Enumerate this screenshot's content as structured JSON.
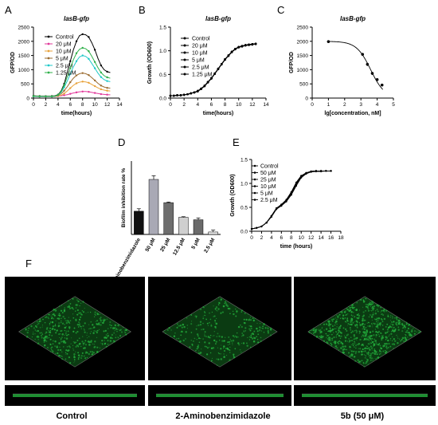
{
  "figure": {
    "colors": {
      "black": "#000000",
      "green": "#22a83a",
      "dark_green": "#0b3b12"
    }
  },
  "chart_data": [
    {
      "panel": "A",
      "type": "line",
      "title": "lasB-gfp",
      "xlabel": "time(hours)",
      "ylabel": "GFP/OD",
      "xlim": [
        0,
        14
      ],
      "ylim": [
        0,
        2500
      ],
      "xticks": [
        "0",
        "2",
        "4",
        "6",
        "8",
        "10",
        "12",
        "14"
      ],
      "yticks": [
        "0",
        "500",
        "1000",
        "1500",
        "2000",
        "2500"
      ],
      "x": [
        0,
        0.5,
        1,
        1.5,
        2,
        2.5,
        3,
        3.5,
        4,
        4.5,
        5,
        5.5,
        6,
        6.5,
        7,
        7.5,
        8,
        8.5,
        9,
        9.5,
        10,
        10.5,
        11,
        11.5,
        12,
        12.5
      ],
      "series": [
        {
          "name": "Control",
          "color": "#000000",
          "values": [
            80,
            75,
            70,
            70,
            68,
            68,
            70,
            80,
            120,
            250,
            500,
            900,
            1300,
            1700,
            2000,
            2200,
            2250,
            2230,
            2150,
            1950,
            1700,
            1400,
            1150,
            1000,
            930,
            900
          ]
        },
        {
          "name": "20 μM",
          "color": "#e0389a",
          "values": [
            60,
            58,
            55,
            55,
            55,
            55,
            55,
            60,
            70,
            80,
            100,
            120,
            150,
            180,
            200,
            220,
            230,
            230,
            220,
            200,
            180,
            160,
            140,
            130,
            120,
            115
          ]
        },
        {
          "name": "10 μM",
          "color": "#e8a23a",
          "values": [
            60,
            58,
            55,
            55,
            55,
            55,
            55,
            60,
            75,
            100,
            160,
            250,
            350,
            450,
            520,
            560,
            580,
            570,
            540,
            480,
            420,
            360,
            310,
            280,
            260,
            250
          ]
        },
        {
          "name": "5 μM",
          "color": "#9a6b2f",
          "values": [
            60,
            58,
            55,
            55,
            55,
            55,
            55,
            60,
            90,
            150,
            260,
            400,
            560,
            700,
            800,
            860,
            880,
            860,
            810,
            720,
            620,
            520,
            440,
            390,
            360,
            350
          ]
        },
        {
          "name": "2.5 μM",
          "color": "#1fc8c8",
          "values": [
            60,
            58,
            55,
            55,
            55,
            55,
            55,
            65,
            110,
            200,
            380,
            600,
            850,
            1100,
            1300,
            1450,
            1500,
            1470,
            1380,
            1220,
            1050,
            880,
            740,
            650,
            600,
            580
          ]
        },
        {
          "name": "1.25 μM",
          "color": "#2fb04a",
          "values": [
            70,
            65,
            62,
            62,
            60,
            60,
            62,
            70,
            115,
            230,
            450,
            750,
            1050,
            1350,
            1580,
            1720,
            1770,
            1740,
            1650,
            1470,
            1270,
            1070,
            900,
            790,
            730,
            700
          ]
        }
      ]
    },
    {
      "panel": "B",
      "type": "line",
      "title": "lasB-gfp",
      "xlabel": "time(hours)",
      "ylabel": "Growth (OD600)",
      "xlim": [
        0,
        14
      ],
      "ylim": [
        0,
        1.5
      ],
      "xticks": [
        "0",
        "2",
        "4",
        "6",
        "8",
        "10",
        "12",
        "14"
      ],
      "yticks": [
        "0.0",
        "0.5",
        "1.0",
        "1.5"
      ],
      "x": [
        0,
        0.5,
        1,
        1.5,
        2,
        2.5,
        3,
        3.5,
        4,
        4.5,
        5,
        5.5,
        6,
        6.5,
        7,
        7.5,
        8,
        8.5,
        9,
        9.5,
        10,
        10.5,
        11,
        11.5,
        12,
        12.5
      ],
      "series": [
        {
          "name": "Control",
          "values": [
            0.05,
            0.05,
            0.06,
            0.06,
            0.07,
            0.08,
            0.1,
            0.12,
            0.15,
            0.2,
            0.26,
            0.34,
            0.42,
            0.52,
            0.62,
            0.72,
            0.82,
            0.9,
            0.98,
            1.04,
            1.08,
            1.1,
            1.12,
            1.13,
            1.14,
            1.15
          ]
        },
        {
          "name": "20 μM",
          "values": [
            0.05,
            0.05,
            0.06,
            0.06,
            0.07,
            0.08,
            0.1,
            0.12,
            0.14,
            0.19,
            0.25,
            0.33,
            0.41,
            0.51,
            0.61,
            0.71,
            0.81,
            0.89,
            0.97,
            1.03,
            1.07,
            1.09,
            1.11,
            1.12,
            1.13,
            1.14
          ]
        },
        {
          "name": "10 μM",
          "values": [
            0.05,
            0.05,
            0.06,
            0.06,
            0.07,
            0.08,
            0.1,
            0.12,
            0.15,
            0.2,
            0.26,
            0.34,
            0.42,
            0.52,
            0.62,
            0.72,
            0.82,
            0.9,
            0.98,
            1.04,
            1.08,
            1.1,
            1.12,
            1.13,
            1.14,
            1.15
          ]
        },
        {
          "name": "5 μM",
          "values": [
            0.05,
            0.05,
            0.06,
            0.06,
            0.07,
            0.08,
            0.1,
            0.12,
            0.15,
            0.2,
            0.26,
            0.34,
            0.42,
            0.52,
            0.62,
            0.72,
            0.82,
            0.9,
            0.98,
            1.04,
            1.08,
            1.1,
            1.12,
            1.13,
            1.14,
            1.15
          ]
        },
        {
          "name": "2.5 μM",
          "values": [
            0.05,
            0.05,
            0.06,
            0.06,
            0.07,
            0.08,
            0.1,
            0.12,
            0.15,
            0.2,
            0.26,
            0.34,
            0.42,
            0.52,
            0.62,
            0.72,
            0.82,
            0.9,
            0.98,
            1.04,
            1.08,
            1.1,
            1.12,
            1.13,
            1.14,
            1.15
          ]
        },
        {
          "name": "1.25 μM",
          "values": [
            0.05,
            0.05,
            0.06,
            0.06,
            0.07,
            0.08,
            0.1,
            0.12,
            0.15,
            0.2,
            0.26,
            0.34,
            0.42,
            0.52,
            0.62,
            0.72,
            0.82,
            0.9,
            0.98,
            1.04,
            1.08,
            1.1,
            1.12,
            1.13,
            1.14,
            1.15
          ]
        }
      ]
    },
    {
      "panel": "C",
      "type": "scatter",
      "title": "lasB-gfp",
      "xlabel": "lg[concentration, nM]",
      "ylabel": "GFP/OD",
      "xlim": [
        0,
        5
      ],
      "ylim": [
        0,
        2500
      ],
      "xticks": [
        "0",
        "1",
        "2",
        "3",
        "4",
        "5"
      ],
      "yticks": [
        "0",
        "500",
        "1000",
        "1500",
        "2000",
        "2500"
      ],
      "x": [
        1,
        3.1,
        3.4,
        3.7,
        4.0,
        4.3
      ],
      "values": [
        1990,
        1540,
        1190,
        870,
        650,
        460
      ],
      "errors": [
        40,
        50,
        60,
        50,
        40,
        40
      ],
      "fit": {
        "top": 2000,
        "bottom": 0,
        "logIC50": 3.6,
        "hill": 1.0
      }
    },
    {
      "panel": "D",
      "type": "bar",
      "ylabel": "Biofilm inhibition rate %",
      "ylim": [
        0,
        60
      ],
      "categories": [
        "2-Aminobenzimidazole",
        "50 μM",
        "25 μM",
        "12.5 μM",
        "5 μM",
        "2.5 μM"
      ],
      "values": [
        19,
        45,
        26,
        14,
        12,
        2
      ],
      "errors": [
        2,
        3,
        0.5,
        0.5,
        1.5,
        1.5
      ],
      "colors": [
        "#111111",
        "#a9a9b5",
        "#6e6e6e",
        "#cfcfcf",
        "#6a6a6a",
        "#e4e4e4"
      ]
    },
    {
      "panel": "E",
      "type": "line",
      "xlabel": "time (hours)",
      "ylabel": "Growth (OD600)",
      "xlim": [
        0,
        18
      ],
      "ylim": [
        0,
        1.5
      ],
      "xticks": [
        "0",
        "2",
        "4",
        "6",
        "8",
        "10",
        "12",
        "14",
        "16",
        "18"
      ],
      "yticks": [
        "0.0",
        "0.5",
        "1.0",
        "1.5"
      ],
      "x": [
        0,
        1,
        2,
        3,
        4,
        5,
        6,
        7,
        8,
        9,
        10,
        11,
        12,
        13,
        14,
        15,
        16
      ],
      "series": [
        {
          "name": "Control",
          "values": [
            0.05,
            0.07,
            0.1,
            0.18,
            0.32,
            0.48,
            0.55,
            0.65,
            0.8,
            1.0,
            1.15,
            1.22,
            1.25,
            1.26,
            1.26,
            1.26,
            1.26
          ]
        },
        {
          "name": "50 μM",
          "values": [
            0.05,
            0.07,
            0.1,
            0.18,
            0.3,
            0.46,
            0.53,
            0.62,
            0.76,
            0.95,
            1.12,
            1.2,
            1.24,
            1.25,
            1.25,
            1.26,
            1.26
          ]
        },
        {
          "name": "25 μM",
          "values": [
            0.05,
            0.07,
            0.1,
            0.18,
            0.31,
            0.47,
            0.55,
            0.64,
            0.78,
            0.98,
            1.14,
            1.21,
            1.25,
            1.26,
            1.26,
            1.26,
            1.26
          ]
        },
        {
          "name": "10 μM",
          "values": [
            0.05,
            0.07,
            0.1,
            0.18,
            0.32,
            0.48,
            0.56,
            0.66,
            0.82,
            1.02,
            1.16,
            1.22,
            1.25,
            1.26,
            1.26,
            1.26,
            1.26
          ]
        },
        {
          "name": "5 μM",
          "values": [
            0.05,
            0.07,
            0.1,
            0.18,
            0.32,
            0.48,
            0.55,
            0.65,
            0.8,
            1.0,
            1.15,
            1.22,
            1.25,
            1.26,
            1.26,
            1.26,
            1.26
          ]
        },
        {
          "name": "2.5 μM",
          "values": [
            0.05,
            0.07,
            0.1,
            0.18,
            0.32,
            0.48,
            0.55,
            0.64,
            0.79,
            0.99,
            1.14,
            1.21,
            1.25,
            1.26,
            1.26,
            1.26,
            1.26
          ]
        }
      ]
    }
  ],
  "panel_letters": {
    "A": "A",
    "B": "B",
    "C": "C",
    "D": "D",
    "E": "E",
    "F": "F"
  },
  "micrographs": {
    "captions": [
      "Control",
      "2-Aminobenzimidazole",
      "5b (50 μM)"
    ]
  }
}
